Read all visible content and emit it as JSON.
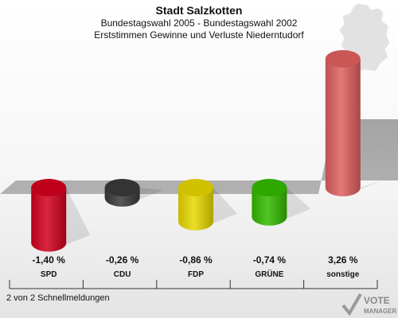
{
  "header": {
    "title": "Stadt Salzkotten",
    "subtitle": "Bundestagswahl 2005 - Bundestagswahl 2002",
    "description": "Erststimmen Gewinne und Verluste Niederntudorf"
  },
  "footer": {
    "page_info": "2 von 2 Schnellmeldungen"
  },
  "logo": {
    "line1": "VOTE",
    "line2": "MANAGER"
  },
  "chart_data": {
    "type": "bar",
    "title": "Stadt Salzkotten",
    "categories": [
      "SPD",
      "CDU",
      "FDP",
      "GRÜNE",
      "sonstige"
    ],
    "values": [
      -1.4,
      -0.26,
      -0.86,
      -0.74,
      3.26
    ],
    "value_labels": [
      "-1,40 %",
      "-0,26 %",
      "-0,86 %",
      "-0,74 %",
      "3,26 %"
    ],
    "colors": [
      "#d4001e",
      "#3a3a3a",
      "#e8d800",
      "#33bb00",
      "#e06060"
    ],
    "unit": "%"
  }
}
